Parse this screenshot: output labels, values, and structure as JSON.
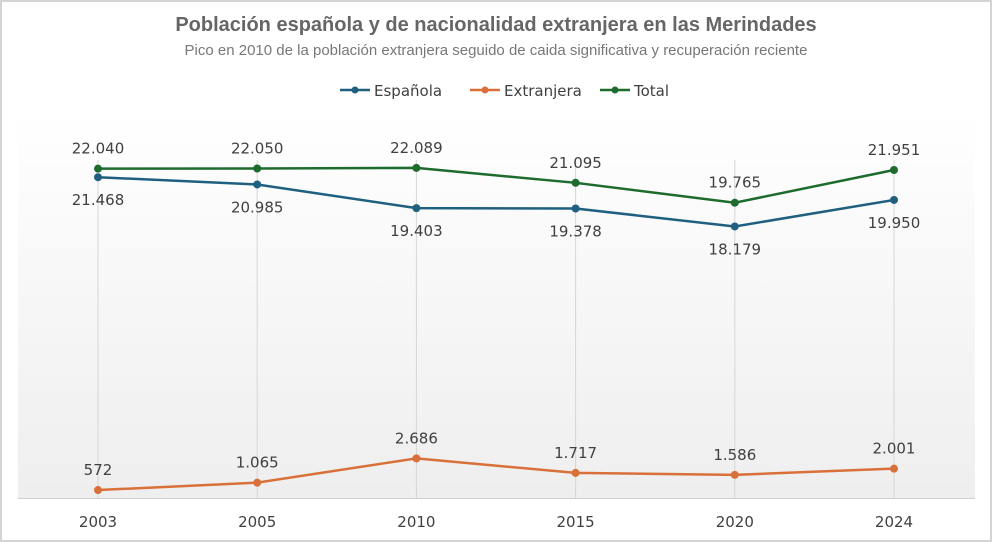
{
  "chart_data": {
    "type": "line",
    "title": "Población española y de nacionalidad extranjera en las Merindades",
    "subtitle": "Pico en 2010 de la población extranjera seguido de caida significativa y recuperación reciente",
    "categories": [
      "2003",
      "2005",
      "2010",
      "2015",
      "2020",
      "2024"
    ],
    "series": [
      {
        "name": "Española",
        "color": "#1f5f7f",
        "values": [
          21468,
          20985,
          19403,
          19378,
          18179,
          19950
        ],
        "labels": [
          "21.468",
          "20.985",
          "19.403",
          "19.378",
          "18.179",
          "19.950"
        ],
        "label_position": "below"
      },
      {
        "name": "Extranjera",
        "color": "#d9703a",
        "values": [
          572,
          1065,
          2686,
          1717,
          1586,
          2001
        ],
        "labels": [
          "572",
          "1.065",
          "2.686",
          "1.717",
          "1.586",
          "2.001"
        ],
        "label_position": "above"
      },
      {
        "name": "Total",
        "color": "#1e6b2e",
        "values": [
          22040,
          22050,
          22089,
          21095,
          19765,
          21951
        ],
        "labels": [
          "22.040",
          "22.050",
          "22.089",
          "21.095",
          "19.765",
          "21.951"
        ],
        "label_position": "above"
      }
    ],
    "ylim": [
      0,
      22400
    ],
    "y_axis_visible": false,
    "grid": "vertical",
    "legend": "top"
  }
}
